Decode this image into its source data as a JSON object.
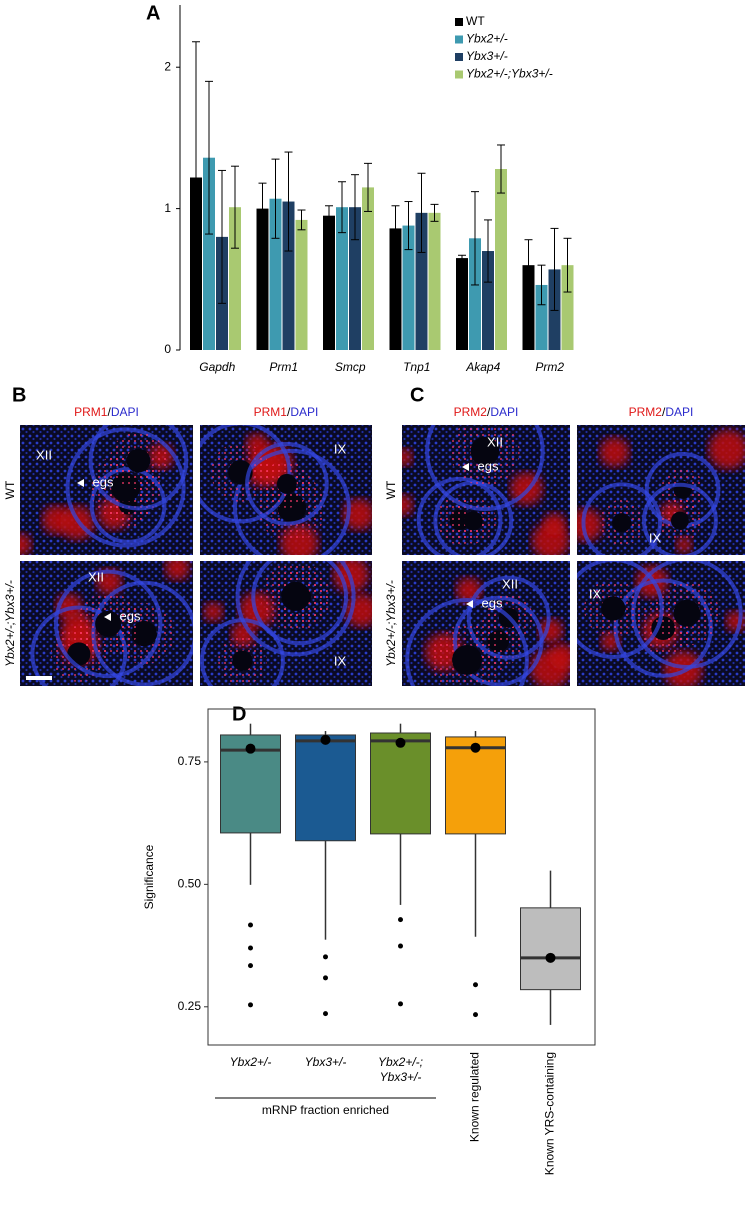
{
  "chart_data": [
    {
      "label": "A",
      "type": "bar",
      "categories": [
        "Gapdh",
        "Prm1",
        "Smcp",
        "Tnp1",
        "Akap4",
        "Prm2"
      ],
      "series": [
        {
          "name": "WT",
          "color": "#000000",
          "values": [
            1.22,
            1.0,
            0.95,
            0.86,
            0.65,
            0.6
          ],
          "errors": [
            0.96,
            0.18,
            0.07,
            0.16,
            0.02,
            0.18
          ]
        },
        {
          "name": "Ybx2+/-",
          "color": "#3e9ab0",
          "values": [
            1.36,
            1.07,
            1.01,
            0.88,
            0.79,
            0.46
          ],
          "errors": [
            0.54,
            0.28,
            0.18,
            0.17,
            0.33,
            0.14
          ]
        },
        {
          "name": "Ybx3+/-",
          "color": "#1f3f63",
          "values": [
            0.8,
            1.05,
            1.01,
            0.97,
            0.7,
            0.57
          ],
          "errors": [
            0.47,
            0.35,
            0.23,
            0.28,
            0.22,
            0.29
          ]
        },
        {
          "name": "Ybx2+/-;Ybx3+/-",
          "color": "#a9c971",
          "values": [
            1.01,
            0.92,
            1.15,
            0.97,
            1.28,
            0.6
          ],
          "errors": [
            0.29,
            0.07,
            0.17,
            0.06,
            0.17,
            0.19
          ]
        }
      ],
      "ylim": [
        0,
        2.44
      ],
      "yticks": [
        0,
        1,
        2
      ],
      "legend": "top-right"
    },
    {
      "label": "D",
      "type": "box",
      "ylabel": "Significance",
      "categories": [
        [
          "Ybx2+/-"
        ],
        [
          "Ybx3+/-"
        ],
        [
          "Ybx2+/-;",
          "Ybx3+/-"
        ],
        [
          "Known regulated"
        ],
        [
          "Known YRS-containing"
        ]
      ],
      "group_label": "mRNP fraction enriched",
      "boxes": [
        {
          "color": "#4a8a85",
          "whisker_low": 0.499,
          "q1": 0.605,
          "median": 0.774,
          "q3": 0.805,
          "whisker_high": 0.828,
          "mean": 0.777,
          "outliers": [
            0.417,
            0.37,
            0.334,
            0.254
          ]
        },
        {
          "color": "#1b5a92",
          "whisker_low": 0.387,
          "q1": 0.589,
          "median": 0.793,
          "q3": 0.805,
          "whisker_high": 0.813,
          "mean": 0.795,
          "outliers": [
            0.352,
            0.309,
            0.236
          ]
        },
        {
          "color": "#6a8f2a",
          "whisker_low": 0.458,
          "q1": 0.603,
          "median": 0.793,
          "q3": 0.809,
          "whisker_high": 0.828,
          "mean": 0.789,
          "outliers": [
            0.428,
            0.374,
            0.256
          ]
        },
        {
          "color": "#f5a00a",
          "whisker_low": 0.393,
          "q1": 0.603,
          "median": 0.779,
          "q3": 0.801,
          "whisker_high": 0.813,
          "mean": 0.779,
          "outliers": [
            0.295,
            0.234
          ]
        },
        {
          "color": "#bdbdbd",
          "whisker_low": 0.213,
          "q1": 0.285,
          "median": 0.35,
          "q3": 0.452,
          "whisker_high": 0.528,
          "mean": 0.35,
          "outliers": []
        }
      ],
      "ylim": [
        0.172,
        0.858
      ],
      "yticks": [
        {
          "value": 0.25,
          "label": "0.25"
        },
        {
          "value": 0.5,
          "label": "0.50"
        },
        {
          "value": 0.75,
          "label": "0.75"
        }
      ]
    }
  ],
  "micrographs": [
    {
      "label": "B",
      "columns": [
        [
          "PRM1",
          "/",
          "DAPI"
        ],
        [
          "PRM1",
          "/",
          "DAPI"
        ]
      ],
      "rows": [
        "WT",
        "Ybx2+/-;Ybx3+/-"
      ],
      "annotations": [
        [
          [
            "XII",
            "egs"
          ],
          [
            "IX"
          ]
        ],
        [
          [
            "XII",
            "egs"
          ],
          [
            "IX"
          ]
        ]
      ]
    },
    {
      "label": "C",
      "columns": [
        [
          "PRM2",
          "/",
          "DAPI"
        ],
        [
          "PRM2",
          "/",
          "DAPI"
        ]
      ],
      "rows": [
        "WT",
        "Ybx2+/-;Ybx3+/-"
      ],
      "annotations": [
        [
          [
            "XII",
            "egs"
          ],
          [
            "IX"
          ]
        ],
        [
          [
            "XII",
            "egs"
          ],
          [
            "IX"
          ]
        ]
      ]
    }
  ]
}
